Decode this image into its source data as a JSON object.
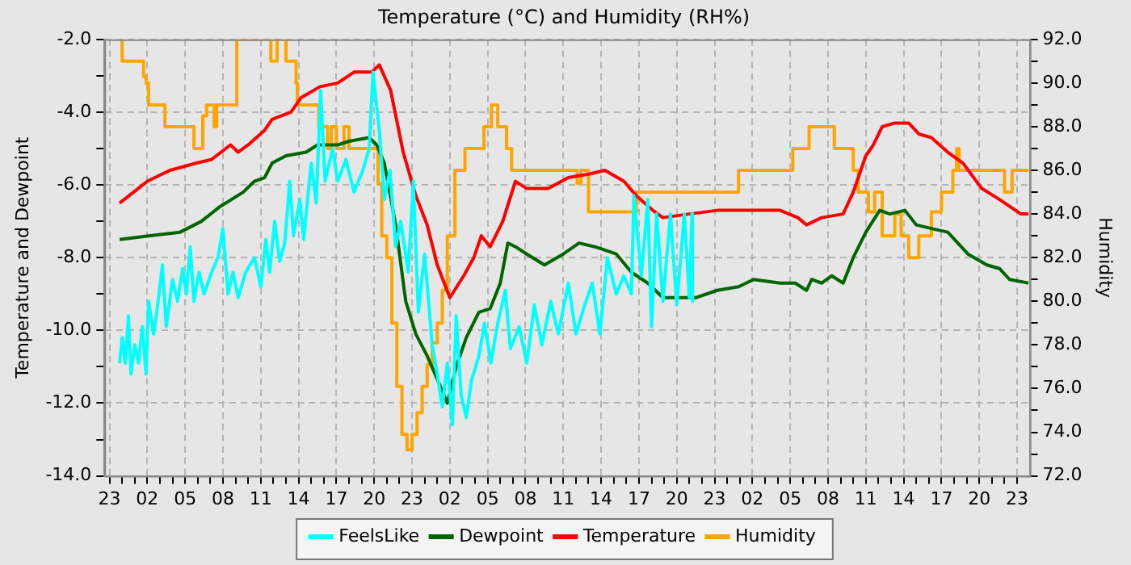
{
  "chart_data": {
    "type": "line",
    "title": "Temperature (°C) and Humidity (RH%)",
    "ylabel": "Temperature and Dewpoint",
    "y2label": "Humidity",
    "xlim": [
      "--01-01T22:36",
      "--01-05T00:00"
    ],
    "xticks": [
      {
        "value": "--01-01T23:00",
        "label": "23"
      },
      {
        "value": "--01-02T00:00",
        "label": null
      },
      {
        "value": "--01-02T01:00",
        "label": null
      },
      {
        "value": "--01-02T02:00",
        "label": "02"
      },
      {
        "value": "--01-02T03:00",
        "label": null
      },
      {
        "value": "--01-02T04:00",
        "label": null
      },
      {
        "value": "--01-02T05:00",
        "label": "05"
      },
      {
        "value": "--01-02T06:00",
        "label": null
      },
      {
        "value": "--01-02T07:00",
        "label": null
      },
      {
        "value": "--01-02T08:00",
        "label": "08"
      },
      {
        "value": "--01-02T09:00",
        "label": null
      },
      {
        "value": "--01-02T10:00",
        "label": null
      },
      {
        "value": "--01-02T11:00",
        "label": "11"
      },
      {
        "value": "--01-02T12:00",
        "label": null
      },
      {
        "value": "--01-02T13:00",
        "label": null
      },
      {
        "value": "--01-02T14:00",
        "label": "14"
      },
      {
        "value": "--01-02T15:00",
        "label": null
      },
      {
        "value": "--01-02T16:00",
        "label": null
      },
      {
        "value": "--01-02T17:00",
        "label": "17"
      },
      {
        "value": "--01-02T18:00",
        "label": null
      },
      {
        "value": "--01-02T19:00",
        "label": null
      },
      {
        "value": "--01-02T20:00",
        "label": "20"
      },
      {
        "value": "--01-02T21:00",
        "label": null
      },
      {
        "value": "--01-02T22:00",
        "label": null
      },
      {
        "value": "--01-02T23:00",
        "label": "23"
      },
      {
        "value": "--01-03T00:00",
        "label": null
      },
      {
        "value": "--01-03T01:00",
        "label": null
      },
      {
        "value": "--01-03T02:00",
        "label": "02"
      },
      {
        "value": "--01-03T03:00",
        "label": null
      },
      {
        "value": "--01-03T04:00",
        "label": null
      },
      {
        "value": "--01-03T05:00",
        "label": "05"
      },
      {
        "value": "--01-03T06:00",
        "label": null
      },
      {
        "value": "--01-03T07:00",
        "label": null
      },
      {
        "value": "--01-03T08:00",
        "label": "08"
      },
      {
        "value": "--01-03T09:00",
        "label": null
      },
      {
        "value": "--01-03T10:00",
        "label": null
      },
      {
        "value": "--01-03T11:00",
        "label": "11"
      },
      {
        "value": "--01-03T12:00",
        "label": null
      },
      {
        "value": "--01-03T13:00",
        "label": null
      },
      {
        "value": "--01-03T14:00",
        "label": "14"
      },
      {
        "value": "--01-03T15:00",
        "label": null
      },
      {
        "value": "--01-03T16:00",
        "label": null
      },
      {
        "value": "--01-03T17:00",
        "label": "17"
      },
      {
        "value": "--01-03T18:00",
        "label": null
      },
      {
        "value": "--01-03T19:00",
        "label": null
      },
      {
        "value": "--01-03T20:00",
        "label": "20"
      },
      {
        "value": "--01-03T21:00",
        "label": null
      },
      {
        "value": "--01-03T22:00",
        "label": null
      },
      {
        "value": "--01-03T23:00",
        "label": "23"
      },
      {
        "value": "--01-04T00:00",
        "label": null
      },
      {
        "value": "--01-04T01:00",
        "label": null
      },
      {
        "value": "--01-04T02:00",
        "label": "02"
      },
      {
        "value": "--01-04T03:00",
        "label": null
      },
      {
        "value": "--01-04T04:00",
        "label": null
      },
      {
        "value": "--01-04T05:00",
        "label": "05"
      },
      {
        "value": "--01-04T06:00",
        "label": null
      },
      {
        "value": "--01-04T07:00",
        "label": null
      },
      {
        "value": "--01-04T08:00",
        "label": "08"
      },
      {
        "value": "--01-04T09:00",
        "label": null
      },
      {
        "value": "--01-04T10:00",
        "label": null
      },
      {
        "value": "--01-04T11:00",
        "label": "11"
      },
      {
        "value": "--01-04T12:00",
        "label": null
      },
      {
        "value": "--01-04T13:00",
        "label": null
      },
      {
        "value": "--01-04T14:00",
        "label": "14"
      },
      {
        "value": "--01-04T15:00",
        "label": null
      },
      {
        "value": "--01-04T16:00",
        "label": null
      },
      {
        "value": "--01-04T17:00",
        "label": "17"
      },
      {
        "value": "--01-04T18:00",
        "label": null
      },
      {
        "value": "--01-04T19:00",
        "label": null
      },
      {
        "value": "--01-04T20:00",
        "label": "20"
      },
      {
        "value": "--01-04T21:00",
        "label": null
      },
      {
        "value": "--01-04T22:00",
        "label": null
      },
      {
        "value": "--01-04T23:00",
        "label": "23"
      }
    ],
    "ylim": [
      -14,
      -2
    ],
    "yticks": [
      {
        "value": -14,
        "label": "-14.0"
      },
      {
        "value": -13,
        "label": null
      },
      {
        "value": -12,
        "label": "-12.0"
      },
      {
        "value": -11,
        "label": null
      },
      {
        "value": -10,
        "label": "-10.0"
      },
      {
        "value": -9,
        "label": null
      },
      {
        "value": -8,
        "label": "-8.0"
      },
      {
        "value": -7,
        "label": null
      },
      {
        "value": -6,
        "label": "-6.0"
      },
      {
        "value": -5,
        "label": null
      },
      {
        "value": -4,
        "label": "-4.0"
      },
      {
        "value": -3,
        "label": null
      },
      {
        "value": -2,
        "label": "-2.0"
      }
    ],
    "y2lim": [
      72,
      92
    ],
    "y2ticks": [
      {
        "value": 72,
        "label": "72.0"
      },
      {
        "value": 73,
        "label": null
      },
      {
        "value": 74,
        "label": "74.0"
      },
      {
        "value": 75,
        "label": null
      },
      {
        "value": 76,
        "label": "76.0"
      },
      {
        "value": 77,
        "label": null
      },
      {
        "value": 78,
        "label": "78.0"
      },
      {
        "value": 79,
        "label": null
      },
      {
        "value": 80,
        "label": "80.0"
      },
      {
        "value": 81,
        "label": null
      },
      {
        "value": 82,
        "label": "82.0"
      },
      {
        "value": 83,
        "label": null
      },
      {
        "value": 84,
        "label": "84.0"
      },
      {
        "value": 85,
        "label": null
      },
      {
        "value": 86,
        "label": "86.0"
      },
      {
        "value": 87,
        "label": null
      },
      {
        "value": 88,
        "label": "88.0"
      },
      {
        "value": 89,
        "label": null
      },
      {
        "value": 90,
        "label": "90.0"
      },
      {
        "value": 91,
        "label": null
      },
      {
        "value": 92,
        "label": "92.0"
      }
    ],
    "grid": true,
    "legend": "bottom",
    "marker": "none",
    "series": [
      {
        "name": "FeelsLike",
        "color": "#00ffff",
        "x": [
          "--01-01T23:48",
          "--01-02T00:00",
          "--01-02T00:15",
          "--01-02T00:30",
          "--01-02T00:42",
          "--01-02T01:00",
          "--01-02T01:18",
          "--01-02T01:36",
          "--01-02T01:54",
          "--01-02T02:06",
          "--01-02T02:30",
          "--01-02T02:45",
          "--01-02T03:12",
          "--01-02T03:30",
          "--01-02T04:00",
          "--01-02T04:24",
          "--01-02T04:48",
          "--01-02T05:06",
          "--01-02T05:24",
          "--01-02T05:42",
          "--01-02T06:06",
          "--01-02T06:30",
          "--01-02T07:06",
          "--01-02T07:36",
          "--01-02T08:00",
          "--01-02T08:24",
          "--01-02T08:48",
          "--01-02T09:12",
          "--01-02T09:48",
          "--01-02T10:30",
          "--01-02T11:00",
          "--01-02T11:24",
          "--01-02T11:42",
          "--01-02T12:06",
          "--01-02T12:30",
          "--01-02T12:54",
          "--01-02T13:18",
          "--01-02T13:36",
          "--01-02T14:06",
          "--01-02T14:24",
          "--01-02T15:00",
          "--01-02T15:24",
          "--01-02T15:45",
          "--01-02T16:06",
          "--01-02T16:42",
          "--01-02T17:06",
          "--01-02T17:45",
          "--01-02T18:24",
          "--01-02T19:06",
          "--01-02T19:36",
          "--01-02T19:54",
          "--01-02T20:24",
          "--01-02T20:48",
          "--01-02T21:15",
          "--01-02T21:42",
          "--01-02T22:06",
          "--01-02T22:42",
          "--01-02T23:06",
          "--01-02T23:30",
          "--01-03T00:00",
          "--01-03T00:36",
          "--01-03T01:00",
          "--01-03T01:24",
          "--01-03T01:48",
          "--01-03T02:12",
          "--01-03T02:30",
          "--01-03T02:54",
          "--01-03T03:18",
          "--01-03T03:42",
          "--01-03T04:18",
          "--01-03T04:45",
          "--01-03T05:15",
          "--01-03T05:48",
          "--01-03T06:24",
          "--01-03T06:48",
          "--01-03T07:30",
          "--01-03T08:06",
          "--01-03T08:42",
          "--01-03T09:18",
          "--01-03T10:00",
          "--01-03T10:36",
          "--01-03T11:24",
          "--01-03T12:00",
          "--01-03T12:42",
          "--01-03T13:18",
          "--01-03T13:54",
          "--01-03T14:30",
          "--01-03T15:12",
          "--01-03T15:48",
          "--01-03T16:24",
          "--01-03T16:36",
          "--01-03T17:12",
          "--01-03T17:42",
          "--01-03T18:00",
          "--01-03T18:24",
          "--01-03T18:54",
          "--01-03T19:30",
          "--01-03T20:00",
          "--01-03T20:36",
          "--01-03T21:00",
          "--01-03T21:12",
          "--01-03T21:15"
        ],
        "values": [
          -10.9,
          -10.2,
          -10.9,
          -9.6,
          -11.2,
          -10.4,
          -10.9,
          -9.9,
          -11.2,
          -9.2,
          -10.1,
          -9.5,
          -8.2,
          -9.9,
          -8.6,
          -9.2,
          -8.3,
          -9.0,
          -7.7,
          -9.2,
          -8.4,
          -9.0,
          -8.4,
          -8.0,
          -7.2,
          -9.0,
          -8.4,
          -9.1,
          -8.4,
          -8.0,
          -8.8,
          -7.5,
          -8.4,
          -7.0,
          -8.1,
          -7.6,
          -5.9,
          -7.4,
          -6.4,
          -7.5,
          -5.4,
          -6.5,
          -3.4,
          -5.9,
          -5.0,
          -5.9,
          -5.3,
          -6.2,
          -5.6,
          -5.0,
          -2.9,
          -4.5,
          -6.4,
          -5.6,
          -7.7,
          -7.0,
          -8.4,
          -5.9,
          -9.5,
          -7.9,
          -10.4,
          -11.2,
          -12.1,
          -10.9,
          -12.6,
          -9.6,
          -11.8,
          -12.4,
          -11.4,
          -10.7,
          -9.8,
          -10.9,
          -9.8,
          -8.9,
          -10.5,
          -9.9,
          -10.9,
          -9.3,
          -10.4,
          -9.2,
          -10.1,
          -8.7,
          -10.1,
          -9.3,
          -8.7,
          -10.1,
          -8.0,
          -9.0,
          -8.5,
          -9.0,
          -6.3,
          -8.5,
          -6.4,
          -9.9,
          -6.8,
          -9.2,
          -6.8,
          -9.3,
          -6.8,
          -9.1,
          -6.8,
          -9.2
        ]
      },
      {
        "name": "Dewpoint",
        "color": "#006400",
        "x": [
          "--01-01T23:48",
          "--01-02T02:06",
          "--01-02T04:36",
          "--01-02T06:18",
          "--01-02T07:45",
          "--01-02T09:36",
          "--01-02T10:30",
          "--01-02T11:18",
          "--01-02T11:54",
          "--01-02T13:00",
          "--01-02T14:36",
          "--01-02T15:30",
          "--01-02T17:06",
          "--01-02T18:00",
          "--01-02T19:36",
          "--01-02T20:12",
          "--01-02T20:48",
          "--01-02T21:42",
          "--01-02T22:30",
          "--01-02T23:18",
          "--01-03T00:12",
          "--01-03T01:12",
          "--01-03T01:48",
          "--01-03T02:30",
          "--01-03T03:18",
          "--01-03T04:18",
          "--01-03T05:12",
          "--01-03T06:00",
          "--01-03T06:36",
          "--01-03T07:12",
          "--01-03T08:06",
          "--01-03T09:30",
          "--01-03T11:00",
          "--01-03T12:15",
          "--01-03T13:30",
          "--01-03T15:12",
          "--01-03T16:24",
          "--01-03T17:42",
          "--01-03T18:54",
          "--01-03T20:36",
          "--01-03T21:30",
          "--01-03T23:12",
          "--01-04T00:54",
          "--01-04T02:06",
          "--01-04T04:12",
          "--01-04T05:24",
          "--01-04T06:18",
          "--01-04T06:42",
          "--01-04T07:30",
          "--01-04T08:18",
          "--01-04T09:12",
          "--01-04T10:00",
          "--01-04T11:00",
          "--01-04T12:06",
          "--01-04T12:54",
          "--01-04T14:06",
          "--01-04T15:00",
          "--01-04T16:12",
          "--01-04T17:30",
          "--01-04T19:06",
          "--01-04T20:36",
          "--01-04T21:36",
          "--01-04T22:24",
          "--01-04T23:54"
        ],
        "values": [
          -7.5,
          -7.4,
          -7.3,
          -7.0,
          -6.6,
          -6.2,
          -5.9,
          -5.8,
          -5.4,
          -5.2,
          -5.1,
          -4.9,
          -4.9,
          -4.8,
          -4.7,
          -4.9,
          -5.4,
          -7.1,
          -9.2,
          -10.1,
          -10.7,
          -11.5,
          -12.0,
          -11.0,
          -10.2,
          -9.5,
          -9.4,
          -8.7,
          -7.6,
          -7.7,
          -7.9,
          -8.2,
          -7.9,
          -7.6,
          -7.7,
          -7.9,
          -8.4,
          -8.7,
          -9.1,
          -9.1,
          -9.1,
          -8.9,
          -8.8,
          -8.6,
          -8.7,
          -8.7,
          -8.9,
          -8.6,
          -8.7,
          -8.5,
          -8.7,
          -8.0,
          -7.3,
          -6.7,
          -6.8,
          -6.7,
          -7.1,
          -7.2,
          -7.3,
          -7.9,
          -8.2,
          -8.3,
          -8.6,
          -8.7
        ]
      },
      {
        "name": "Temperature",
        "color": "#ff0000",
        "x": [
          "--01-01T23:48",
          "--01-02T02:00",
          "--01-02T03:48",
          "--01-02T05:54",
          "--01-02T07:06",
          "--01-02T08:36",
          "--01-02T09:12",
          "--01-02T10:00",
          "--01-02T11:18",
          "--01-02T11:54",
          "--01-02T13:24",
          "--01-02T14:12",
          "--01-02T15:42",
          "--01-02T17:06",
          "--01-02T18:24",
          "--01-02T19:48",
          "--01-02T20:24",
          "--01-02T21:18",
          "--01-02T22:18",
          "--01-02T23:18",
          "--01-03T00:12",
          "--01-03T01:00",
          "--01-03T02:00",
          "--01-03T03:06",
          "--01-03T03:54",
          "--01-03T04:30",
          "--01-03T05:12",
          "--01-03T06:12",
          "--01-03T07:12",
          "--01-03T08:06",
          "--01-03T09:48",
          "--01-03T11:24",
          "--01-03T13:06",
          "--01-03T14:18",
          "--01-03T15:48",
          "--01-03T16:48",
          "--01-03T18:06",
          "--01-03T18:54",
          "--01-03T21:00",
          "--01-03T23:12",
          "--01-04T04:12",
          "--01-04T05:36",
          "--01-04T06:18",
          "--01-04T07:30",
          "--01-04T09:12",
          "--01-04T10:00",
          "--01-04T11:00",
          "--01-04T11:36",
          "--01-04T12:18",
          "--01-04T13:18",
          "--01-04T14:24",
          "--01-04T15:12",
          "--01-04T16:12",
          "--01-04T17:30",
          "--01-04T18:42",
          "--01-04T20:12",
          "--01-04T21:36",
          "--01-04T23:18",
          "--01-04T23:54"
        ],
        "values": [
          -6.5,
          -5.9,
          -5.6,
          -5.4,
          -5.3,
          -4.9,
          -5.1,
          -4.9,
          -4.5,
          -4.2,
          -4.0,
          -3.6,
          -3.3,
          -3.2,
          -2.9,
          -2.9,
          -2.7,
          -3.4,
          -5.1,
          -6.3,
          -7.1,
          -8.2,
          -9.1,
          -8.5,
          -8.0,
          -7.4,
          -7.7,
          -7.0,
          -5.9,
          -6.1,
          -6.1,
          -5.8,
          -5.7,
          -5.6,
          -5.9,
          -6.3,
          -6.7,
          -6.9,
          -6.8,
          -6.7,
          -6.7,
          -6.9,
          -7.1,
          -6.9,
          -6.8,
          -6.2,
          -5.2,
          -4.9,
          -4.4,
          -4.3,
          -4.3,
          -4.6,
          -4.7,
          -5.1,
          -5.4,
          -6.1,
          -6.4,
          -6.8,
          -6.8
        ]
      },
      {
        "name": "Humidity",
        "color": "#ffa500",
        "type": "step",
        "axis": "y2",
        "x": [
          "--01-01T23:48",
          "--01-02T00:00",
          "--01-02T01:30",
          "--01-02T01:42",
          "--01-02T01:54",
          "--01-02T02:06",
          "--01-02T03:24",
          "--01-02T05:36",
          "--01-02T05:42",
          "--01-02T06:12",
          "--01-02T06:24",
          "--01-02T06:42",
          "--01-02T07:18",
          "--01-02T07:30",
          "--01-02T09:00",
          "--01-02T09:06",
          "--01-02T11:36",
          "--01-02T11:48",
          "--01-02T12:06",
          "--01-02T12:18",
          "--01-02T12:48",
          "--01-02T13:00",
          "--01-02T13:48",
          "--01-02T13:54",
          "--01-02T15:24",
          "--01-02T15:36",
          "--01-02T16:18",
          "--01-02T16:36",
          "--01-02T17:00",
          "--01-02T17:36",
          "--01-02T18:00",
          "--01-02T19:54",
          "--01-02T20:18",
          "--01-02T20:36",
          "--01-02T21:00",
          "--01-02T21:24",
          "--01-02T21:48",
          "--01-02T22:12",
          "--01-02T22:36",
          "--01-02T23:00",
          "--01-02T23:24",
          "--01-02T23:48",
          "--01-03T00:12",
          "--01-03T00:36",
          "--01-03T01:00",
          "--01-03T01:24",
          "--01-03T01:48",
          "--01-03T02:24",
          "--01-03T03:12",
          "--01-03T04:06",
          "--01-03T04:42",
          "--01-03T05:18",
          "--01-03T05:48",
          "--01-03T06:30",
          "--01-03T06:54",
          "--01-03T11:48",
          "--01-03T12:06",
          "--01-03T12:24",
          "--01-03T13:00",
          "--01-03T16:24",
          "--01-03T16:48",
          "--01-03T21:24",
          "--01-04T00:54",
          "--01-04T05:12",
          "--01-04T06:30",
          "--01-04T08:30",
          "--01-04T10:00",
          "--01-04T10:24",
          "--01-04T11:12",
          "--01-04T11:42",
          "--01-04T12:18",
          "--01-04T13:18",
          "--01-04T13:48",
          "--01-04T14:24",
          "--01-04T15:12",
          "--01-04T16:12",
          "--01-04T17:00",
          "--01-04T17:54",
          "--01-04T18:12",
          "--01-04T18:24",
          "--01-04T22:00",
          "--01-04T22:36",
          "--01-04T23:54"
        ],
        "values": [
          92,
          91,
          91,
          90.3,
          90,
          89,
          88,
          88,
          87,
          87,
          88.5,
          89,
          88,
          89,
          89,
          92,
          92,
          91,
          91,
          92,
          92,
          91,
          90,
          89,
          89,
          88,
          87,
          88,
          87,
          88,
          87,
          87,
          85.4,
          83,
          82,
          79,
          76.1,
          73.9,
          73.2,
          73.9,
          74.9,
          76.1,
          77.1,
          78.1,
          79,
          80.5,
          83,
          86,
          87,
          87,
          88,
          89,
          88,
          87,
          86,
          86,
          85.4,
          86,
          84.1,
          84.1,
          85,
          85,
          86,
          87,
          88,
          87,
          86,
          85,
          84.1,
          85,
          83,
          84,
          83,
          82,
          83,
          84.1,
          85,
          86,
          87,
          86,
          85,
          86,
          86
        ]
      }
    ]
  }
}
